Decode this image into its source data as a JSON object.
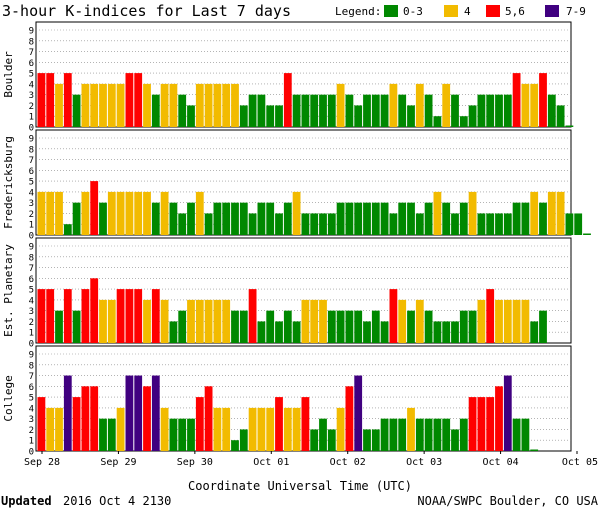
{
  "chart_data": {
    "type": "bar",
    "title": "3-hour K-indices for Last 7 days",
    "legend": {
      "label": "Legend:",
      "placement": "top-right",
      "entries": [
        {
          "label": "0-3",
          "color": "#008800"
        },
        {
          "label": "4",
          "color": "#f2bb00"
        },
        {
          "label": "5,6",
          "color": "#ff0000"
        },
        {
          "label": "7-9",
          "color": "#400080"
        }
      ]
    },
    "xlabel": "Coordinate Universal Time (UTC)",
    "x_ticks": [
      "Sep 28",
      "Sep 29",
      "Sep 30",
      "Oct 01",
      "Oct 02",
      "Oct 03",
      "Oct 04",
      "Oct 05"
    ],
    "y_ticks": [
      "0",
      "1",
      "2",
      "3",
      "4",
      "5",
      "6",
      "7",
      "8",
      "9"
    ],
    "ylim": [
      0,
      9
    ],
    "grid": "horizontal",
    "series": [
      {
        "name": "Boulder",
        "values": [
          5,
          5,
          4,
          5,
          3,
          4,
          4,
          4,
          4,
          4,
          5,
          5,
          4,
          3,
          4,
          4,
          3,
          2,
          4,
          4,
          4,
          4,
          4,
          2,
          3,
          3,
          2,
          2,
          5,
          3,
          3,
          3,
          3,
          3,
          4,
          3,
          2,
          3,
          3,
          3,
          4,
          3,
          2,
          4,
          3,
          1,
          4,
          3,
          1,
          2,
          3,
          3,
          3,
          3,
          5,
          4,
          4,
          5,
          3,
          2,
          0
        ]
      },
      {
        "name": "Fredericksburg",
        "values": [
          4,
          4,
          4,
          1,
          3,
          4,
          5,
          3,
          4,
          4,
          4,
          4,
          4,
          3,
          4,
          3,
          2,
          3,
          4,
          2,
          3,
          3,
          3,
          3,
          2,
          3,
          3,
          2,
          3,
          4,
          2,
          2,
          2,
          2,
          3,
          3,
          3,
          3,
          3,
          3,
          2,
          3,
          3,
          2,
          3,
          4,
          3,
          2,
          3,
          4,
          2,
          2,
          2,
          2,
          3,
          3,
          4,
          3,
          4,
          4,
          2,
          2,
          0
        ]
      },
      {
        "name": "Est. Planetary",
        "values": [
          5,
          5,
          3,
          5,
          3,
          5,
          6,
          4,
          4,
          5,
          5,
          5,
          4,
          5,
          4,
          2,
          3,
          4,
          4,
          4,
          4,
          4,
          3,
          3,
          5,
          2,
          3,
          2,
          3,
          2,
          4,
          4,
          4,
          3,
          3,
          3,
          3,
          2,
          3,
          2,
          5,
          4,
          3,
          4,
          3,
          2,
          2,
          2,
          3,
          3,
          4,
          5,
          4,
          4,
          4,
          4,
          2,
          3
        ]
      },
      {
        "name": "College",
        "values": [
          5,
          4,
          4,
          7,
          5,
          6,
          6,
          3,
          3,
          4,
          7,
          7,
          6,
          7,
          4,
          3,
          3,
          3,
          5,
          6,
          4,
          4,
          1,
          2,
          4,
          4,
          4,
          5,
          4,
          4,
          5,
          2,
          3,
          2,
          4,
          6,
          7,
          2,
          2,
          3,
          3,
          3,
          4,
          3,
          3,
          3,
          3,
          2,
          3,
          5,
          5,
          5,
          6,
          7,
          3,
          3,
          0
        ]
      }
    ]
  },
  "footer": {
    "updated_label": "Updated",
    "updated_value": "2016 Oct  4 2130",
    "credit": "NOAA/SWPC Boulder, CO USA"
  }
}
